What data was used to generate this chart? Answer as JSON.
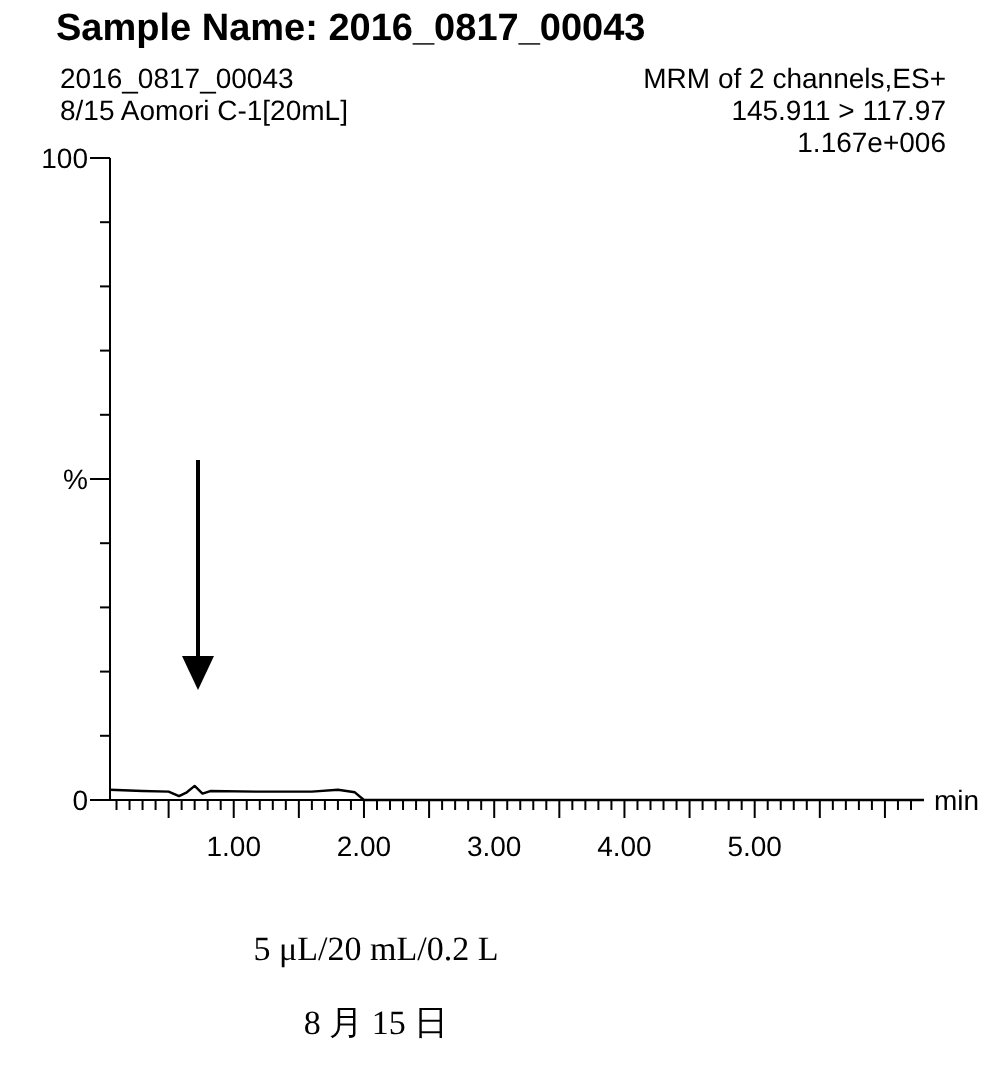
{
  "chart_data": {
    "type": "line",
    "title": "Sample Name: 2016_0817_00043",
    "xlabel": "min",
    "annotations": [
      "2016_0817_00043",
      "8/15 Aomori C-1[20mL]",
      "MRM of 2 channels,ES+",
      "145.911 > 117.97",
      "1.167e+006",
      "5 μL/20 mL/0.2 L",
      "8 月 15 日"
    ],
    "x": [
      0.05,
      0.3,
      0.5,
      0.58,
      0.64,
      0.7,
      0.76,
      0.82,
      1.2,
      1.6,
      1.8,
      1.93,
      2.0,
      2.05,
      6.3
    ],
    "series": [
      {
        "color": "#000000",
        "values": [
          1.6,
          1.4,
          1.3,
          0.6,
          1.2,
          2.2,
          1.0,
          1.4,
          1.3,
          1.3,
          1.6,
          1.2,
          0,
          0,
          0
        ]
      }
    ],
    "xlim": [
      0.05,
      6.3
    ],
    "ylim": [
      0,
      100
    ],
    "xticks": [
      {
        "value": 1,
        "label": "1.00"
      },
      {
        "value": 2,
        "label": "2.00"
      },
      {
        "value": 3,
        "label": "3.00"
      },
      {
        "value": 4,
        "label": "4.00"
      },
      {
        "value": 5,
        "label": "5.00"
      },
      {
        "value": 0.1,
        "label": null
      },
      {
        "value": 0.2,
        "label": null
      },
      {
        "value": 0.3,
        "label": null
      },
      {
        "value": 0.4,
        "label": null
      },
      {
        "value": 0.5,
        "label": null
      },
      {
        "value": 0.6,
        "label": null
      },
      {
        "value": 0.7,
        "label": null
      },
      {
        "value": 0.8,
        "label": null
      },
      {
        "value": 0.9,
        "label": null
      },
      {
        "value": 1.1,
        "label": null
      },
      {
        "value": 1.2,
        "label": null
      },
      {
        "value": 1.3,
        "label": null
      },
      {
        "value": 1.4,
        "label": null
      },
      {
        "value": 1.5,
        "label": null
      },
      {
        "value": 1.6,
        "label": null
      },
      {
        "value": 1.7,
        "label": null
      },
      {
        "value": 1.8,
        "label": null
      },
      {
        "value": 1.9,
        "label": null
      },
      {
        "value": 2.1,
        "label": null
      },
      {
        "value": 2.2,
        "label": null
      },
      {
        "value": 2.3,
        "label": null
      },
      {
        "value": 2.4,
        "label": null
      },
      {
        "value": 2.5,
        "label": null
      },
      {
        "value": 2.6,
        "label": null
      },
      {
        "value": 2.7,
        "label": null
      },
      {
        "value": 2.8,
        "label": null
      },
      {
        "value": 2.9,
        "label": null
      },
      {
        "value": 3.1,
        "label": null
      },
      {
        "value": 3.2,
        "label": null
      },
      {
        "value": 3.3,
        "label": null
      },
      {
        "value": 3.4,
        "label": null
      },
      {
        "value": 3.5,
        "label": null
      },
      {
        "value": 3.6,
        "label": null
      },
      {
        "value": 3.7,
        "label": null
      },
      {
        "value": 3.8,
        "label": null
      },
      {
        "value": 3.9,
        "label": null
      },
      {
        "value": 4.1,
        "label": null
      },
      {
        "value": 4.2,
        "label": null
      },
      {
        "value": 4.3,
        "label": null
      },
      {
        "value": 4.4,
        "label": null
      },
      {
        "value": 4.5,
        "label": null
      },
      {
        "value": 4.6,
        "label": null
      },
      {
        "value": 4.7,
        "label": null
      },
      {
        "value": 4.8,
        "label": null
      },
      {
        "value": 4.9,
        "label": null
      },
      {
        "value": 5.1,
        "label": null
      },
      {
        "value": 5.2,
        "label": null
      },
      {
        "value": 5.3,
        "label": null
      },
      {
        "value": 5.4,
        "label": null
      },
      {
        "value": 5.5,
        "label": null
      },
      {
        "value": 5.6,
        "label": null
      },
      {
        "value": 5.7,
        "label": null
      },
      {
        "value": 5.8,
        "label": null
      },
      {
        "value": 5.9,
        "label": null
      },
      {
        "value": 6.0,
        "label": null
      },
      {
        "value": 6.1,
        "label": null
      },
      {
        "value": 6.2,
        "label": null
      }
    ],
    "yticks": [
      0,
      {
        "value": 10,
        "label": null
      },
      {
        "value": 20,
        "label": null
      },
      {
        "value": 30,
        "label": null
      },
      {
        "value": 40,
        "label": null
      },
      {
        "value": 50,
        "label": "%"
      },
      {
        "value": 60,
        "label": null
      },
      {
        "value": 70,
        "label": null
      },
      {
        "value": 80,
        "label": null
      },
      {
        "value": 90,
        "label": null
      },
      100
    ],
    "line_style": "solid"
  }
}
